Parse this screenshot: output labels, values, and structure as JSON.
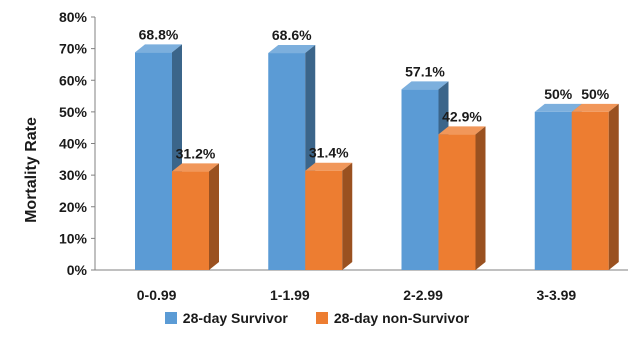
{
  "chart_data": {
    "type": "bar",
    "categories": [
      "0-0.99",
      "1-1.99",
      "2-2.99",
      "3-3.99"
    ],
    "series": [
      {
        "name": "28-day Survivor",
        "values": [
          68.8,
          68.6,
          57.1,
          50
        ],
        "labels": [
          "68.8%",
          "68.6%",
          "57.1%",
          "50%"
        ],
        "color": "#5B9BD5"
      },
      {
        "name": "28-day non-Survivor",
        "values": [
          31.2,
          31.4,
          42.9,
          50
        ],
        "labels": [
          "31.2%",
          "31.4%",
          "42.9%",
          "50%"
        ],
        "color": "#ED7D31"
      }
    ],
    "ylabel": "Mortality Rate",
    "ylim": [
      0,
      80
    ],
    "yticks": [
      "0%",
      "10%",
      "20%",
      "30%",
      "40%",
      "50%",
      "60%",
      "70%",
      "80%"
    ],
    "grid": false,
    "legend_position": "bottom",
    "style": "3d-columns"
  }
}
